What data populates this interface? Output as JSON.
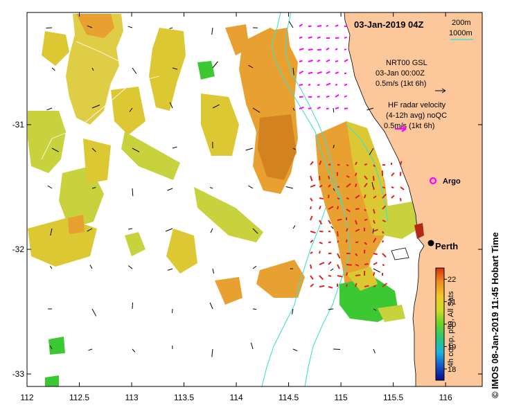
{
  "map": {
    "title": "03-Jan-2019 04Z",
    "depth_legend": {
      "line1": "200m",
      "line2": "1000m",
      "color": "#40e0d0"
    },
    "gsl_legend": {
      "line1": "NRT00 GSL",
      "line2": "03-Jan 00:00Z",
      "line3": "0.5m/s (1kt 6h)",
      "arrow_color": "#000000"
    },
    "radar_legend": {
      "line1": "HF radar velocity",
      "line2": "(4-12h avg) noQC",
      "line3": "0.5m/s (1kt 6h)",
      "arrow_color": "#ff00ff"
    },
    "argo": {
      "label": "Argo",
      "color": "#ff00ff",
      "lon": 115.88,
      "lat": -31.45
    },
    "city": {
      "label": "Perth",
      "lon": 115.86,
      "lat": -31.95
    },
    "x_axis": {
      "ticks": [
        "112",
        "112.5",
        "113",
        "113.5",
        "114",
        "114.5",
        "115",
        "115.5",
        "116"
      ],
      "range": [
        112,
        116.35
      ]
    },
    "y_axis": {
      "ticks": [
        "-31",
        "-32",
        "-33"
      ],
      "range": [
        -33.1,
        -30.1
      ]
    },
    "colorbar": {
      "ticks": [
        "22",
        "21",
        "20",
        "19",
        "18"
      ],
      "min": 17.5,
      "max": 22.5,
      "label": "4h comp, p50, All Sats"
    },
    "credit": "© IMOS 08-Jan-2019 11:45 Hobart Time",
    "colors": {
      "land": "#fcc89b",
      "sst_warm": "#e8a030",
      "sst_mid": "#dcc832",
      "sst_cool": "#b4d23c",
      "sst_green": "#3cc832",
      "radar_arrow": "#e02020"
    }
  }
}
